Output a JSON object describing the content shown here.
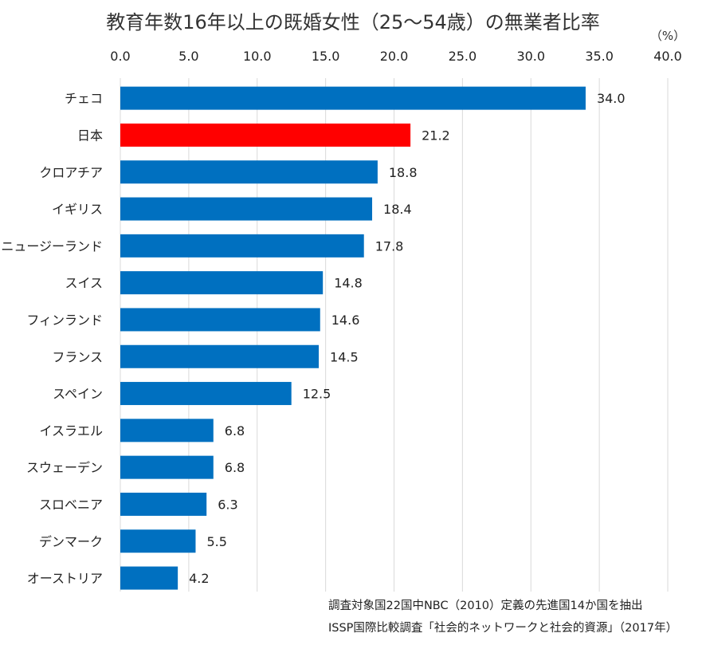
{
  "chart_data": {
    "type": "bar",
    "orientation": "horizontal",
    "title": "教育年数16年以上の既婚女性（25～54歳）の無業者比率",
    "unit": "（%）",
    "xlim": [
      0,
      40
    ],
    "ticks": [
      "0.0",
      "5.0",
      "10.0",
      "15.0",
      "20.0",
      "25.0",
      "30.0",
      "35.0",
      "40.0"
    ],
    "tick_values": [
      0,
      5,
      10,
      15,
      20,
      25,
      30,
      35,
      40
    ],
    "axis_position": "top",
    "grid": true,
    "categories": [
      "チェコ",
      "日本",
      "クロアチア",
      "イギリス",
      "ニュージーランド",
      "スイス",
      "フィンランド",
      "フランス",
      "スペイン",
      "イスラエル",
      "スウェーデン",
      "スロベニア",
      "デンマーク",
      "オーストリア"
    ],
    "values": [
      34.0,
      21.2,
      18.8,
      18.4,
      17.8,
      14.8,
      14.6,
      14.5,
      12.5,
      6.8,
      6.8,
      6.3,
      5.5,
      4.2
    ],
    "value_labels": [
      "34.0",
      "21.2",
      "18.8",
      "18.4",
      "17.8",
      "14.8",
      "14.6",
      "14.5",
      "12.5",
      "6.8",
      "6.8",
      "6.3",
      "5.5",
      "4.2"
    ],
    "colors": {
      "default_bar": "#0070C0",
      "highlight_bar": "#FF0000",
      "highlight_category": "日本"
    },
    "notes": [
      "調査対象国22国中NBC（2010）定義の先進国14か国を抽出",
      "ISSP国際比較調査「社会的ネットワークと社会的資源」（2017年）"
    ]
  }
}
